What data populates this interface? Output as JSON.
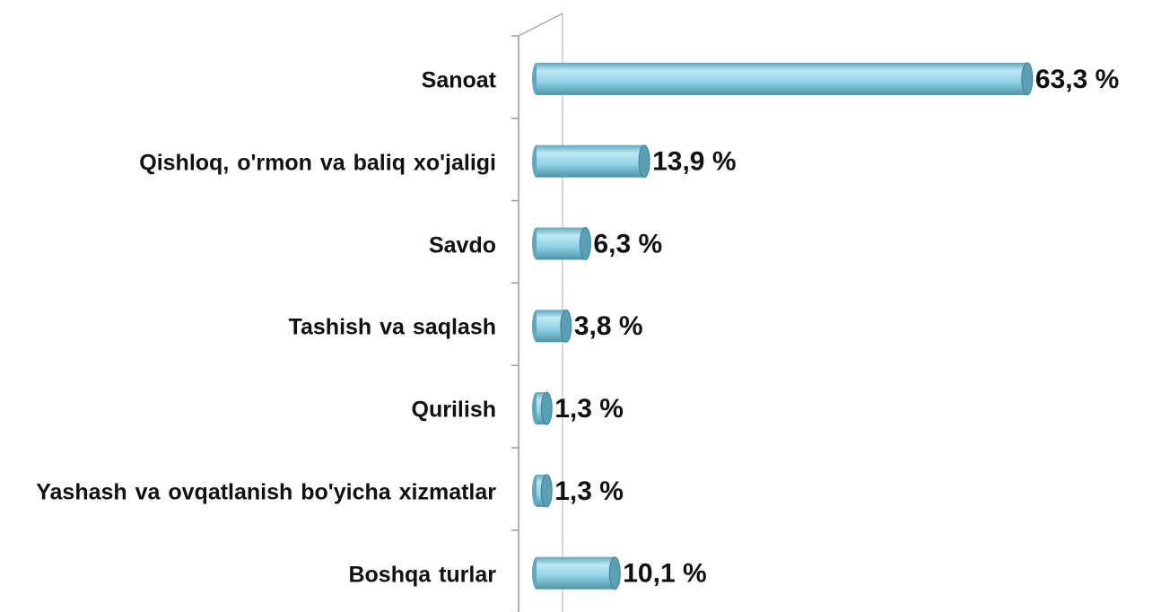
{
  "chart_data": {
    "type": "bar",
    "orientation": "horizontal",
    "categories": [
      "Sanoat",
      "Qishloq, o'rmon va baliq xo'jaligi",
      "Savdo",
      "Tashish va saqlash",
      "Qurilish",
      "Yashash va ovqatlanish bo'yicha xizmatlar",
      "Boshqa turlar"
    ],
    "values": [
      63.3,
      13.9,
      6.3,
      3.8,
      1.3,
      1.3,
      10.1
    ],
    "value_labels": [
      "63,3 %",
      "13,9 %",
      "6,3 %",
      "3,8 %",
      "1,3 %",
      "1,3 %",
      "10,1 %"
    ],
    "color": "#7ec8dc"
  }
}
